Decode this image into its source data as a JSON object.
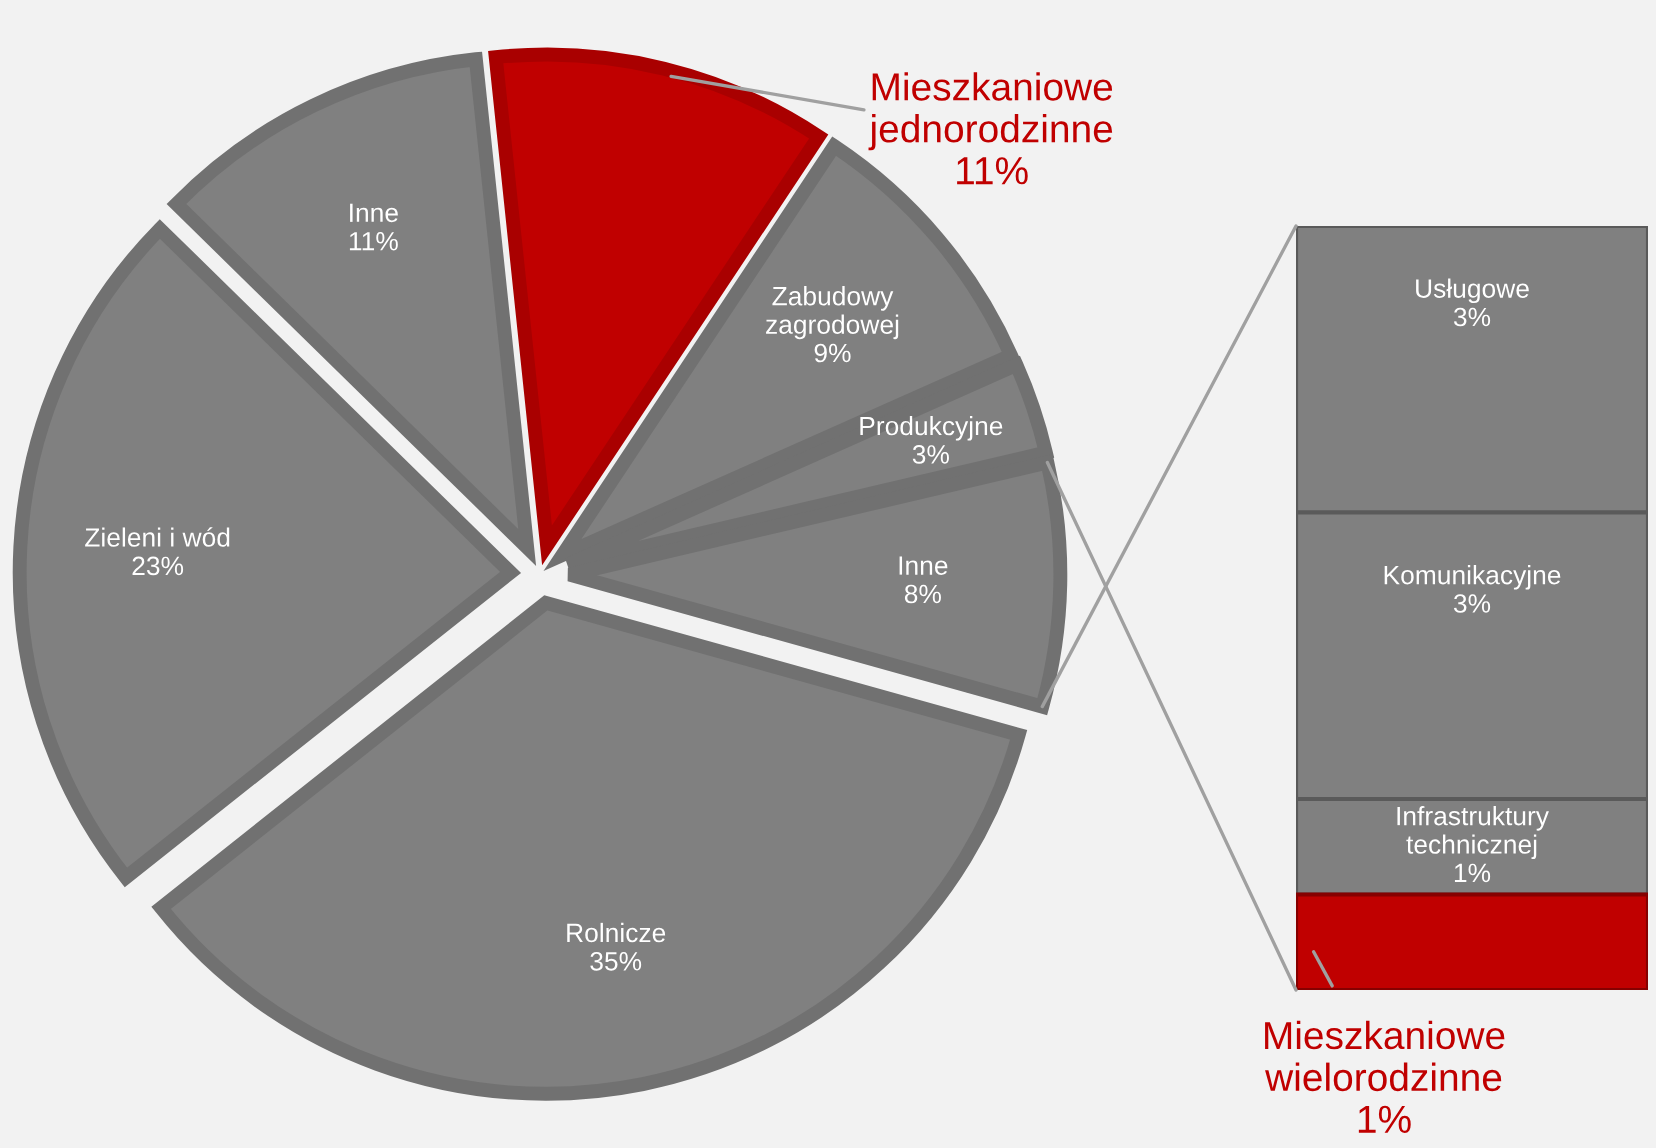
{
  "chart_data": [
    {
      "type": "pie",
      "categories": [
        "Mieszkaniowe\njednorodzinne",
        "Zabudowy\nzagrodowej",
        "Produkcyjne",
        "Inne",
        "Rolnicze",
        "Zieleni i wód",
        "Inne"
      ],
      "values": [
        11,
        9,
        3,
        8,
        35,
        23,
        11
      ],
      "colors": [
        "#c00000",
        "#808080",
        "#808080",
        "#808080",
        "#808080",
        "#808080",
        "#808080"
      ],
      "value_labels": [
        "11%",
        "9%",
        "3%",
        "8%",
        "35%",
        "23%",
        "11%"
      ]
    },
    {
      "type": "bar",
      "stacked": true,
      "categories": [
        null
      ],
      "ylim": [
        0,
        8
      ],
      "tick_labels": false,
      "series": [
        {
          "name": "Mieszkaniowe\nwielorodzinne",
          "color": "#c00000",
          "values": [
            1
          ],
          "value_labels": [
            "1%"
          ]
        },
        {
          "name": "Infrastruktury\ntechnicznej",
          "color": "#808080",
          "values": [
            1
          ],
          "value_labels": [
            "1%"
          ]
        },
        {
          "name": "Komunikacyjne",
          "color": "#808080",
          "values": [
            3
          ],
          "value_labels": [
            "3%"
          ]
        },
        {
          "name": "Usługowe",
          "color": "#808080",
          "values": [
            3
          ],
          "value_labels": [
            "3%"
          ]
        }
      ]
    }
  ]
}
